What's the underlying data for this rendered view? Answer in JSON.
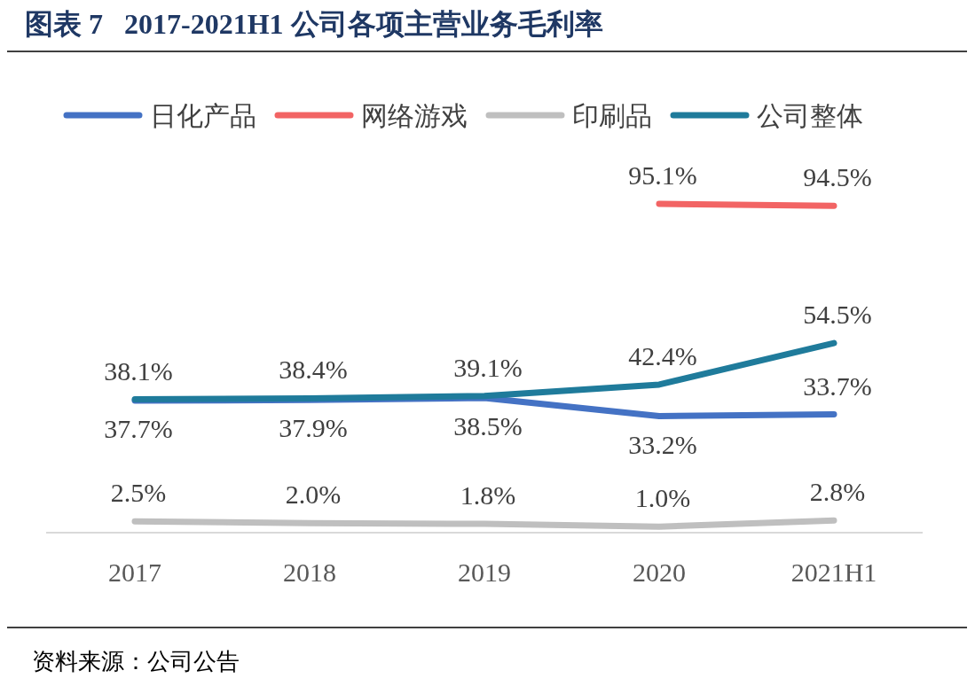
{
  "chart_data": {
    "type": "line",
    "title": "图表 7   2017-2021H1 公司各项主营业务毛利率",
    "categories": [
      "2017",
      "2018",
      "2019",
      "2020",
      "2021H1"
    ],
    "series": [
      {
        "name": "日化产品",
        "color": "#4472c4",
        "values": [
          37.7,
          37.9,
          38.5,
          33.2,
          33.7
        ],
        "value_labels": [
          "37.7%",
          "37.9%",
          "38.5%",
          "33.2%",
          "33.7%"
        ]
      },
      {
        "name": "网络游戏",
        "color": "#f26464",
        "values": [
          null,
          null,
          null,
          95.1,
          94.5
        ],
        "value_labels": [
          null,
          null,
          null,
          "95.1%",
          "94.5%"
        ]
      },
      {
        "name": "印刷品",
        "color": "#bfbfbf",
        "values": [
          2.5,
          2.0,
          1.8,
          1.0,
          2.8
        ],
        "value_labels": [
          "2.5%",
          "2.0%",
          "1.8%",
          "1.0%",
          "2.8%"
        ]
      },
      {
        "name": "公司整体",
        "color": "#1f7b9b",
        "values": [
          38.1,
          38.4,
          39.1,
          42.4,
          54.5
        ],
        "value_labels": [
          "38.1%",
          "38.4%",
          "39.1%",
          "42.4%",
          "54.5%"
        ]
      }
    ],
    "legend": "top",
    "marker": "none",
    "line_style": "solid",
    "annotations": [
      "资料来源：公司公告"
    ]
  }
}
